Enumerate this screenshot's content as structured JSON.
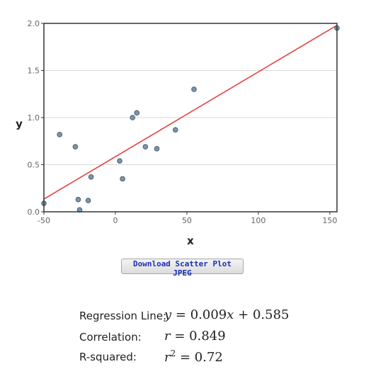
{
  "chart_data": {
    "type": "scatter",
    "xlabel": "x",
    "ylabel": "y",
    "xlim": [
      -50,
      155
    ],
    "ylim": [
      0,
      2.0
    ],
    "xticks": [
      -50,
      0,
      50,
      100,
      150
    ],
    "xtick_labels": [
      "-50",
      "0",
      "50",
      "100",
      "150"
    ],
    "yticks": [
      0,
      0.5,
      1.0,
      1.5,
      2.0
    ],
    "ytick_labels": [
      "0.0",
      "0.5",
      "1.0",
      "1.5",
      "2.0"
    ],
    "grid": "horizontal",
    "points": [
      {
        "x": -50,
        "y": 0.09
      },
      {
        "x": -39,
        "y": 0.82
      },
      {
        "x": -28,
        "y": 0.69
      },
      {
        "x": -26,
        "y": 0.13
      },
      {
        "x": -25,
        "y": 0.02
      },
      {
        "x": -19,
        "y": 0.12
      },
      {
        "x": -17,
        "y": 0.37
      },
      {
        "x": 3,
        "y": 0.54
      },
      {
        "x": 5,
        "y": 0.35
      },
      {
        "x": 12,
        "y": 1.0
      },
      {
        "x": 15,
        "y": 1.05
      },
      {
        "x": 21,
        "y": 0.69
      },
      {
        "x": 29,
        "y": 0.67
      },
      {
        "x": 42,
        "y": 0.87
      },
      {
        "x": 55,
        "y": 1.3
      },
      {
        "x": 155,
        "y": 1.95
      }
    ],
    "regression": {
      "slope": 0.009,
      "intercept": 0.585
    }
  },
  "colors": {
    "point_fill": "#7a95ad",
    "point_stroke": "#4a5f70",
    "regression_line": "#e84040",
    "grid": "#d9d9d9",
    "frame": "#333333"
  },
  "download_button": {
    "label": "Download Scatter Plot JPEG"
  },
  "stats": {
    "regression_label": "Regression Line:",
    "regression_eq_var": "y",
    "regression_eq_rest": "= 0.009",
    "regression_eq_x": "x",
    "regression_eq_tail": "+ 0.585",
    "correlation_label": "Correlation:",
    "correlation_var": "r",
    "correlation_value": "= 0.849",
    "rsquared_label": "R-squared:",
    "rsquared_var": "r",
    "rsquared_exp": "2",
    "rsquared_value": "= 0.72"
  }
}
